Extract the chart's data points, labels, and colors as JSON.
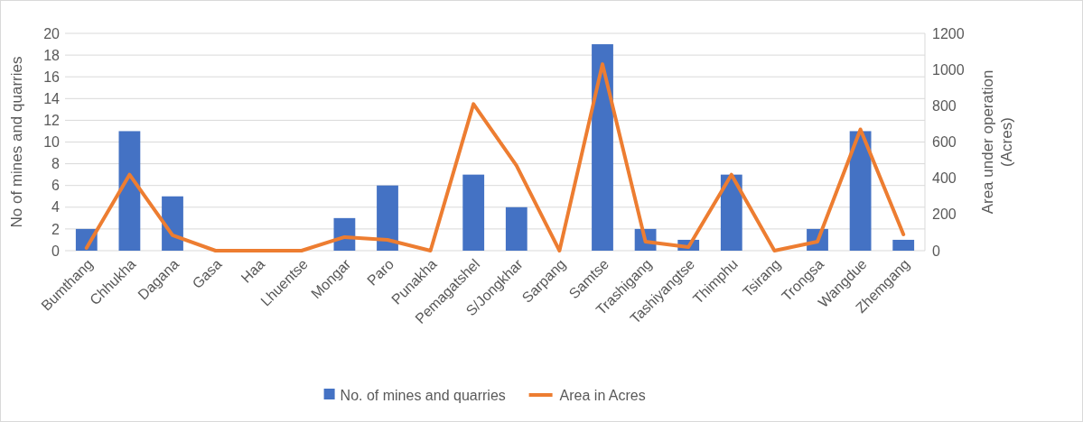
{
  "chart_data": {
    "type": "bar",
    "ylabel": "No of mines and quarries",
    "y2label": "Area under operation (Acres)",
    "categories": [
      "Bumthang",
      "Chhukha",
      "Dagana",
      "Gasa",
      "Haa",
      "Lhuentse",
      "Mongar",
      "Paro",
      "Punakha",
      "Pemagatshel",
      "S/Jongkhar",
      "Sarpang",
      "Samtse",
      "Trashigang",
      "Tashiyangtse",
      "Thimphu",
      "Tsirang",
      "Trongsa",
      "Wangdue",
      "Zhemgang"
    ],
    "series": [
      {
        "name": "No. of mines and quarries",
        "color": "#4472c4",
        "values": [
          2,
          11,
          5,
          0,
          0,
          0,
          3,
          6,
          0,
          7,
          4,
          0,
          19,
          2,
          1,
          7,
          0,
          2,
          11,
          1
        ]
      },
      {
        "name": "Area in Acres",
        "type": "line",
        "axis": "y2",
        "color": "#ed7d31",
        "values": [
          15,
          420,
          85,
          0,
          0,
          0,
          75,
          60,
          0,
          810,
          470,
          0,
          1030,
          50,
          20,
          420,
          0,
          50,
          670,
          90
        ]
      }
    ],
    "ylim": [
      0,
      20
    ],
    "yticks": [
      0,
      2,
      4,
      6,
      8,
      10,
      12,
      14,
      16,
      18,
      20
    ],
    "y2lim": [
      0,
      1200
    ],
    "y2ticks": [
      0,
      200,
      400,
      600,
      800,
      1000,
      1200
    ],
    "grid": "y",
    "legend": "bottom"
  }
}
